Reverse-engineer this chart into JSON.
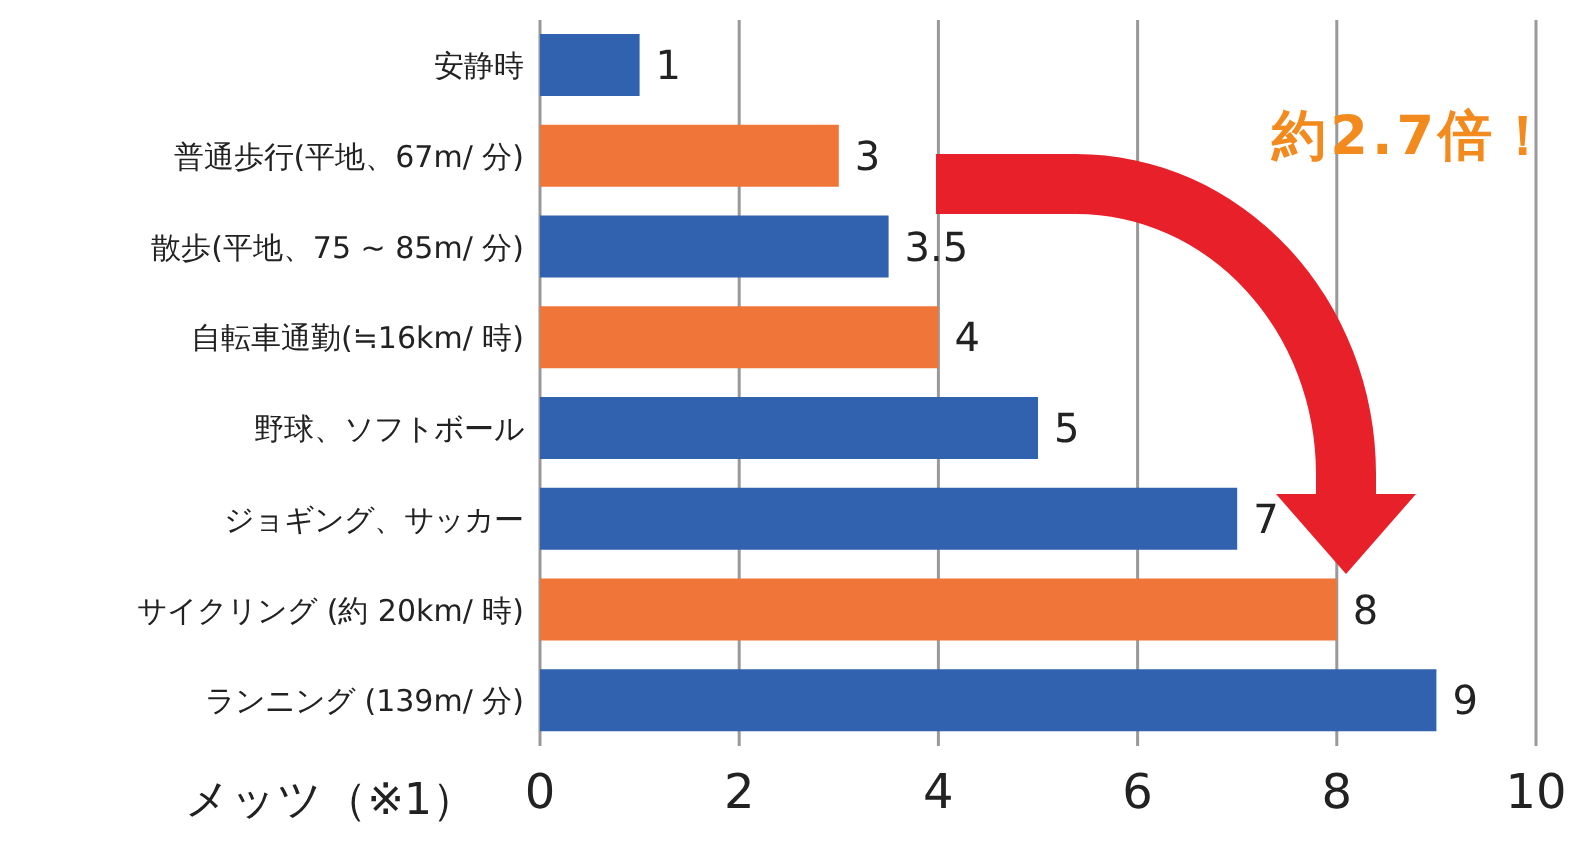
{
  "chart_data": {
    "type": "bar",
    "orientation": "horizontal",
    "categories": [
      "安静時",
      "普通歩行(平地、67m/ 分)",
      "散歩(平地、75 ~ 85m/ 分)",
      "自転車通勤(≒16km/ 時)",
      "野球、ソフトボール",
      "ジョギング、サッカー",
      "サイクリング (約 20km/ 時)",
      "ランニング (139m/ 分)"
    ],
    "values": [
      1,
      3,
      3.5,
      4,
      5,
      7,
      8,
      9
    ],
    "colors": [
      "#3062b0",
      "#f07539",
      "#3062b0",
      "#f07539",
      "#3062b0",
      "#3062b0",
      "#f07539",
      "#3062b0"
    ],
    "xlabel": "メッツ（※1）",
    "xlim": [
      0,
      10
    ],
    "xticks": [
      0,
      2,
      4,
      6,
      8,
      10
    ],
    "grid": "x",
    "data_labels": true,
    "annotations": [
      "約2.7倍！"
    ]
  }
}
